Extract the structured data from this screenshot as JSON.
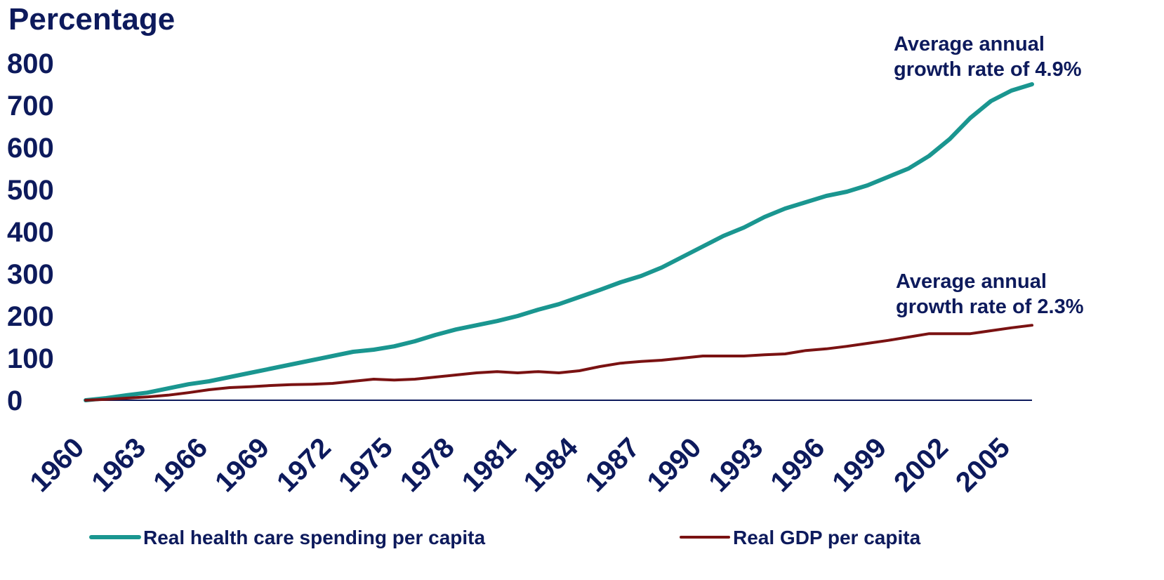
{
  "chart_data": {
    "type": "line",
    "title": "",
    "xlabel": "",
    "ylabel": "Percentage",
    "ylim": [
      0,
      800
    ],
    "xlim": [
      1960,
      2006
    ],
    "yticks": [
      "0",
      "100",
      "200",
      "300",
      "400",
      "500",
      "600",
      "700",
      "800"
    ],
    "xticks": [
      "1960",
      "1963",
      "1966",
      "1969",
      "1972",
      "1975",
      "1978",
      "1981",
      "1984",
      "1987",
      "1990",
      "1993",
      "1996",
      "1999",
      "2002",
      "2005"
    ],
    "grid": false,
    "legend_placement": "bottom",
    "x": [
      1960,
      1961,
      1962,
      1963,
      1964,
      1965,
      1966,
      1967,
      1968,
      1969,
      1970,
      1971,
      1972,
      1973,
      1974,
      1975,
      1976,
      1977,
      1978,
      1979,
      1980,
      1981,
      1982,
      1983,
      1984,
      1985,
      1986,
      1987,
      1988,
      1989,
      1990,
      1991,
      1992,
      1993,
      1994,
      1995,
      1996,
      1997,
      1998,
      1999,
      2000,
      2001,
      2002,
      2003,
      2004,
      2005,
      2006
    ],
    "series": [
      {
        "name": "Real health care spending per capita",
        "color": "#1a9690",
        "values": [
          0,
          5,
          12,
          18,
          28,
          38,
          45,
          55,
          65,
          75,
          85,
          95,
          105,
          115,
          120,
          128,
          140,
          155,
          168,
          178,
          188,
          200,
          215,
          228,
          245,
          262,
          280,
          295,
          315,
          340,
          365,
          390,
          410,
          435,
          455,
          470,
          485,
          495,
          510,
          530,
          550,
          580,
          620,
          670,
          710,
          735,
          750
        ]
      },
      {
        "name": "Real GDP per capita",
        "color": "#7a1212",
        "values": [
          0,
          2,
          5,
          8,
          12,
          18,
          25,
          30,
          32,
          35,
          37,
          38,
          40,
          45,
          50,
          48,
          50,
          55,
          60,
          65,
          68,
          65,
          68,
          65,
          70,
          80,
          88,
          92,
          95,
          100,
          105,
          105,
          105,
          108,
          110,
          118,
          122,
          128,
          135,
          142,
          150,
          158,
          158,
          158,
          165,
          172,
          178
        ]
      }
    ],
    "annotations": [
      {
        "text": [
          "Average annual",
          "growth rate of 4.9%"
        ],
        "series": 0
      },
      {
        "text": [
          "Average annual",
          "growth rate of 2.3%"
        ],
        "series": 1
      }
    ]
  }
}
